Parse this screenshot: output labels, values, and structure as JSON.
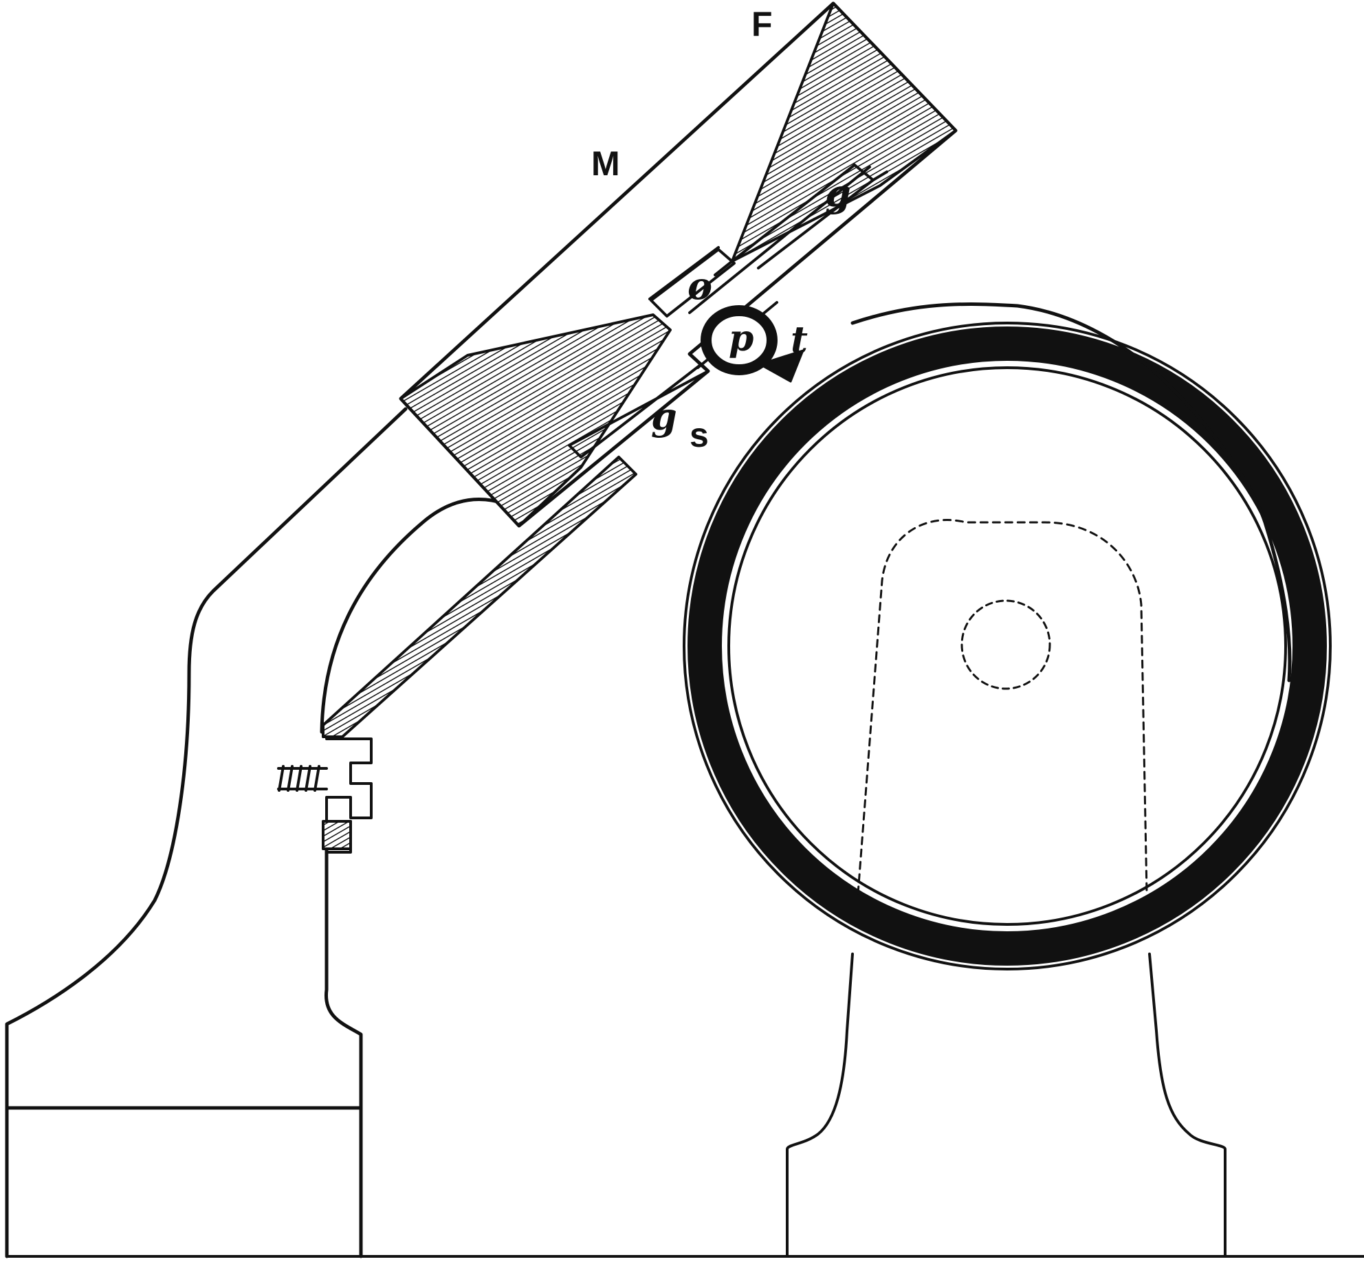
{
  "figure": {
    "ink_color": "#111111",
    "paper_color": "#ffffff",
    "labels": {
      "F": "F",
      "M": "M",
      "g_upper": "g",
      "o": "o",
      "p": "p",
      "t": "t",
      "g_lower": "g",
      "s": "s"
    }
  }
}
